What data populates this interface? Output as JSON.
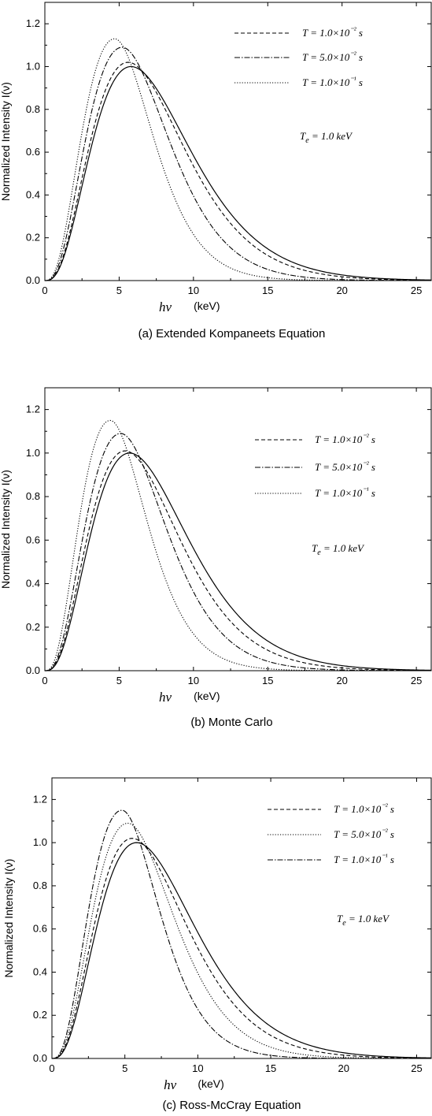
{
  "chart_data": [
    {
      "type": "line",
      "caption": "(a)  Extended Kompaneets Equation",
      "ylabel": "Normalized  Intensity   I(ν)",
      "xlabel_symbol": "hν",
      "xlabel_unit": "(keV)",
      "xlim": [
        0,
        26
      ],
      "ylim": [
        0,
        1.3
      ],
      "xticks": [
        "0",
        "5",
        "10",
        "15",
        "20",
        "25"
      ],
      "yticks": [
        "0.0",
        "0.2",
        "0.4",
        "0.6",
        "0.8",
        "1.0",
        "1.2"
      ],
      "annotation": "T_e = 1.0 keV",
      "series": [
        {
          "name": "",
          "style": "solid",
          "peak_x": 5.8,
          "peak_y": 1.0,
          "width": 1.0,
          "in_legend": false
        },
        {
          "name": "T = 1.0×10⁻² s",
          "style": "dashed",
          "peak_x": 5.6,
          "peak_y": 1.02,
          "width": 0.975,
          "in_legend": true
        },
        {
          "name": "T = 5.0×10⁻² s",
          "style": "dashdot",
          "peak_x": 5.2,
          "peak_y": 1.09,
          "width": 0.87,
          "in_legend": true
        },
        {
          "name": "T = 1.0×10⁻¹ s",
          "style": "dotted",
          "peak_x": 4.7,
          "peak_y": 1.13,
          "width": 0.78,
          "in_legend": true
        }
      ]
    },
    {
      "type": "line",
      "caption": "(b)  Monte Carlo",
      "ylabel": "Normalized  Intensity   I(ν)",
      "xlabel_symbol": "hν",
      "xlabel_unit": "(keV)",
      "xlim": [
        0,
        26
      ],
      "ylim": [
        0,
        1.3
      ],
      "xticks": [
        "0",
        "5",
        "10",
        "15",
        "20",
        "25"
      ],
      "yticks": [
        "0.0",
        "0.2",
        "0.4",
        "0.6",
        "0.8",
        "1.0",
        "1.2"
      ],
      "annotation": "T_e = 1.0 keV",
      "series": [
        {
          "name": "",
          "style": "solid",
          "peak_x": 5.7,
          "peak_y": 1.0,
          "width": 1.0,
          "in_legend": false
        },
        {
          "name": "T = 1.0×10⁻² s",
          "style": "dashed",
          "peak_x": 5.4,
          "peak_y": 1.01,
          "width": 0.97,
          "in_legend": true
        },
        {
          "name": "T = 5.0×10⁻² s",
          "style": "dashdot",
          "peak_x": 5.1,
          "peak_y": 1.09,
          "width": 0.86,
          "in_legend": true
        },
        {
          "name": "T = 1.0×10⁻¹ s",
          "style": "dotted",
          "peak_x": 4.4,
          "peak_y": 1.15,
          "width": 0.8,
          "in_legend": true
        }
      ]
    },
    {
      "type": "line",
      "caption": "(c)  Ross-McCray Equation",
      "ylabel": "Normalized  Intensity   I(ν)",
      "xlabel_symbol": "hν",
      "xlabel_unit": "(keV)",
      "xlim": [
        0,
        26
      ],
      "ylim": [
        0,
        1.3
      ],
      "xticks": [
        "0",
        "5",
        "10",
        "15",
        "20",
        "25"
      ],
      "yticks": [
        "0.0",
        "0.2",
        "0.4",
        "0.6",
        "0.8",
        "1.0",
        "1.2"
      ],
      "annotation": "T_e = 1.0 keV",
      "series": [
        {
          "name": "",
          "style": "solid",
          "peak_x": 5.8,
          "peak_y": 1.0,
          "width": 1.0,
          "in_legend": false
        },
        {
          "name": "T = 1.0×10⁻² s",
          "style": "dashed",
          "peak_x": 5.5,
          "peak_y": 1.02,
          "width": 0.975,
          "in_legend": true
        },
        {
          "name": "T = 5.0×10⁻² s",
          "style": "dotted",
          "peak_x": 5.2,
          "peak_y": 1.09,
          "width": 0.87,
          "in_legend": true
        },
        {
          "name": "T = 1.0×10⁻¹ s",
          "style": "dashdot",
          "peak_x": 4.8,
          "peak_y": 1.15,
          "width": 0.76,
          "in_legend": true
        }
      ]
    }
  ]
}
